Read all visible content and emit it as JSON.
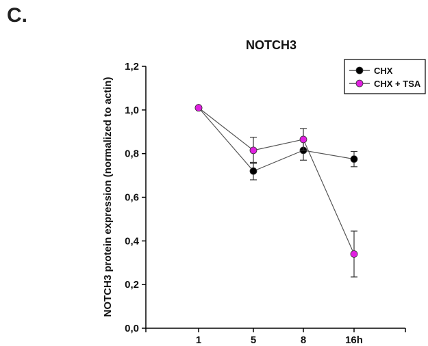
{
  "panel_label": "C.",
  "chart_data": {
    "type": "line",
    "title": "NOTCH3",
    "xlabel": "",
    "ylabel": "NOTCH3 protein expression (normalized to actin)",
    "categories": [
      "1",
      "5",
      "8",
      "16h"
    ],
    "ylim": [
      0.0,
      1.2
    ],
    "yticks": [
      "0,0",
      "0,2",
      "0,4",
      "0,6",
      "0,8",
      "1,0",
      "1,2"
    ],
    "grid": false,
    "legend": "top-right",
    "series": [
      {
        "name": "CHX",
        "color": "#000000",
        "values": [
          1.01,
          0.72,
          0.815,
          0.775
        ],
        "errors": [
          0.0,
          0.04,
          0.045,
          0.035
        ]
      },
      {
        "name": "CHX + TSA",
        "color": "#e020e0",
        "values": [
          1.01,
          0.815,
          0.865,
          0.34
        ],
        "errors": [
          0.0,
          0.06,
          0.05,
          0.105
        ]
      }
    ]
  }
}
